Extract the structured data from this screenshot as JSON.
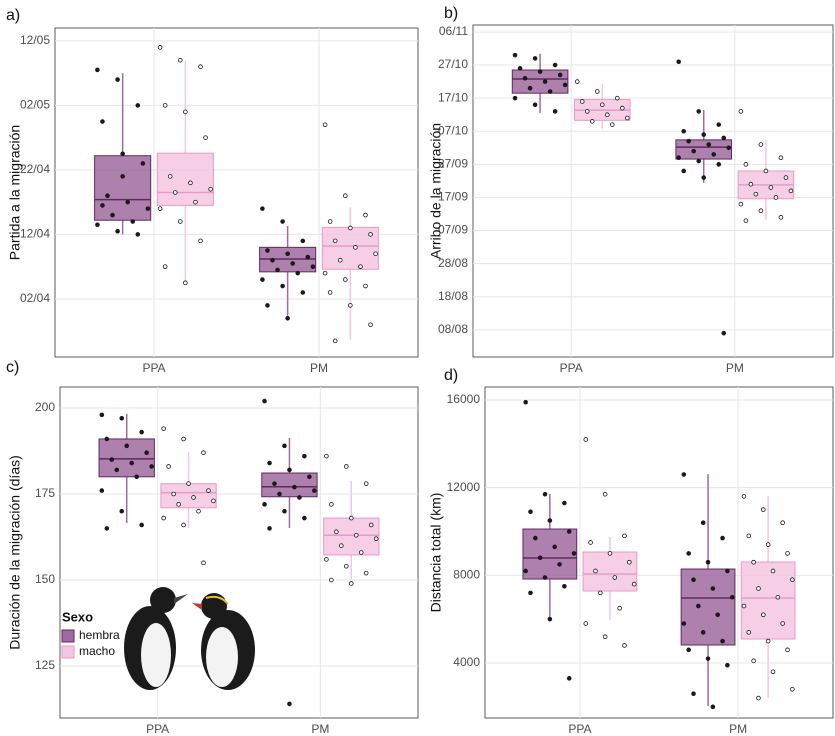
{
  "chart_data": [
    {
      "type": "box",
      "panel_label": "a)",
      "y_label": "Partida a la migración",
      "categories": [
        "PPA",
        "PM"
      ],
      "ylim": [
        83,
        134
      ],
      "yticks": [
        {
          "value": 92,
          "label": "02/04"
        },
        {
          "value": 102,
          "label": "12/04"
        },
        {
          "value": 112,
          "label": "22/04"
        },
        {
          "value": 122,
          "label": "02/05"
        },
        {
          "value": 132,
          "label": "12/05"
        }
      ],
      "grid": true,
      "series": [
        {
          "color": "#a06aa0",
          "stroke": "#5e2a5e",
          "hollow_points": false,
          "boxes": [
            {
              "low": 102,
              "q1": 104.2,
              "median": 107.4,
              "q3": 114.2,
              "high": 127,
              "points": [
                127.5,
                126,
                122,
                119.5,
                114.5,
                113,
                108,
                107,
                106,
                105,
                104,
                103.5,
                102.5,
                102,
                106.5,
                111
              ]
            },
            {
              "low": 89.4,
              "q1": 96.2,
              "median": 98.2,
              "q3": 100,
              "high": 103.3,
              "points": [
                106,
                104,
                101,
                99.5,
                99,
                98.5,
                98,
                97.5,
                97,
                96.5,
                96,
                95,
                94,
                93,
                91,
                89
              ]
            }
          ]
        },
        {
          "color": "#f4c6e2",
          "stroke": "#e79bc9",
          "hollow_points": true,
          "boxes": [
            {
              "low": 94.8,
              "q1": 106.5,
              "median": 108.5,
              "q3": 114.6,
              "high": 128.9,
              "points": [
                131,
                129,
                128,
                122,
                121,
                117,
                111,
                110,
                109,
                108.5,
                107,
                106,
                104,
                101,
                97,
                94.5
              ]
            },
            {
              "low": 85.7,
              "q1": 96.6,
              "median": 100.2,
              "q3": 103.1,
              "high": 106.2,
              "points": [
                119,
                108,
                105,
                104,
                103,
                102,
                101,
                100,
                99,
                98,
                97,
                96,
                95,
                94,
                93,
                91,
                88,
                85.5
              ]
            }
          ]
        }
      ]
    },
    {
      "type": "box",
      "panel_label": "b)",
      "y_label": "Arribo de la migración",
      "categories": [
        "PPA",
        "PM"
      ],
      "ylim": [
        211.8,
        312.1
      ],
      "yticks": [
        {
          "value": 220,
          "label": "08/08"
        },
        {
          "value": 230,
          "label": "18/08"
        },
        {
          "value": 240,
          "label": "28/08"
        },
        {
          "value": 250,
          "label": "07/09"
        },
        {
          "value": 260,
          "label": "17/09"
        },
        {
          "value": 270,
          "label": "27/09"
        },
        {
          "value": 280,
          "label": "07/10"
        },
        {
          "value": 290,
          "label": "17/10"
        },
        {
          "value": 300,
          "label": "27/10"
        },
        {
          "value": 310,
          "label": "06/11"
        }
      ],
      "grid": true,
      "series": [
        {
          "color": "#a06aa0",
          "stroke": "#5e2a5e",
          "hollow_points": false,
          "boxes": [
            {
              "low": 285.5,
              "q1": 291.5,
              "median": 295.8,
              "q3": 298.5,
              "high": 303.4,
              "points": [
                303,
                302,
                300,
                299,
                298,
                297,
                296,
                295,
                294,
                293,
                292,
                290,
                288,
                286
              ]
            },
            {
              "low": 264.4,
              "q1": 271.6,
              "median": 275.2,
              "q3": 277.4,
              "high": 286.4,
              "points": [
                301,
                286,
                282,
                280,
                279,
                278,
                277,
                276,
                275,
                274,
                273,
                272,
                271,
                270,
                268,
                266,
                219
              ]
            }
          ]
        },
        {
          "color": "#f4c6e2",
          "stroke": "#e79bc9",
          "hollow_points": true,
          "boxes": [
            {
              "low": 280.8,
              "q1": 283.3,
              "median": 286.4,
              "q3": 289.6,
              "high": 294.2,
              "points": [
                295,
                292,
                290,
                289,
                288,
                287,
                286,
                285,
                284,
                283,
                282
              ]
            },
            {
              "low": 253.3,
              "q1": 259.6,
              "median": 263.8,
              "q3": 268,
              "high": 277.4,
              "points": [
                286,
                276,
                272,
                270,
                268,
                266,
                264,
                263,
                262,
                261,
                260,
                258,
                256,
                254,
                253
              ]
            }
          ]
        }
      ]
    },
    {
      "type": "box",
      "panel_label": "c)",
      "y_label": "Duración de la migración (días)",
      "categories": [
        "PPA",
        "PM"
      ],
      "ylim": [
        109.9,
        206.1
      ],
      "yticks": [
        125,
        150,
        175,
        200
      ],
      "grid": true,
      "legend": "bottom-left",
      "legend_title": "Sexo",
      "series": [
        {
          "name": "hembra",
          "color": "#a06aa0",
          "stroke": "#5e2a5e",
          "hollow_points": false,
          "boxes": [
            {
              "low": 166.6,
              "q1": 180,
              "median": 185.2,
              "q3": 191,
              "high": 198.3,
              "points": [
                198,
                197,
                193,
                191,
                189,
                187,
                185,
                184,
                183,
                182,
                180,
                176,
                170,
                166,
                165
              ]
            },
            {
              "low": 165.1,
              "q1": 174.2,
              "median": 177.1,
              "q3": 181.1,
              "high": 191.3,
              "points": [
                202,
                189,
                186,
                184,
                182,
                180,
                178,
                177,
                176,
                175,
                174,
                172,
                170,
                168,
                165,
                114
              ]
            }
          ]
        },
        {
          "name": "macho",
          "color": "#f4c6e2",
          "stroke": "#e79bc9",
          "hollow_points": true,
          "boxes": [
            {
              "low": 165.1,
              "q1": 171,
              "median": 175.4,
              "q3": 178,
              "high": 187.2,
              "points": [
                194,
                191,
                187,
                183,
                178,
                176,
                175,
                174,
                173,
                172,
                170,
                168,
                166,
                155
              ]
            },
            {
              "low": 150.3,
              "q1": 157.3,
              "median": 163,
              "q3": 168,
              "high": 178.8,
              "points": [
                186,
                183,
                178,
                172,
                168,
                166,
                164,
                163,
                162,
                160,
                158,
                156,
                154,
                152,
                150,
                149
              ]
            }
          ]
        }
      ]
    },
    {
      "type": "box",
      "panel_label": "d)",
      "y_label": "Distancia total (km)",
      "categories": [
        "PPA",
        "PM"
      ],
      "ylim": [
        1491,
        16593
      ],
      "yticks": [
        4000,
        8000,
        12000,
        16000
      ],
      "grid": true,
      "series": [
        {
          "color": "#a06aa0",
          "stroke": "#5e2a5e",
          "hollow_points": false,
          "boxes": [
            {
              "low": 5960,
              "q1": 7832,
              "median": 8790,
              "q3": 10113,
              "high": 11710,
              "points": [
                15900,
                11700,
                11300,
                10900,
                10500,
                10000,
                9700,
                9300,
                9000,
                8800,
                8500,
                8200,
                7900,
                7500,
                7200,
                6000,
                3300
              ]
            },
            {
              "low": 2040,
              "q1": 4821,
              "median": 6965,
              "q3": 8288,
              "high": 12620,
              "points": [
                12600,
                10400,
                9700,
                9000,
                8600,
                8200,
                7800,
                7400,
                7000,
                6600,
                6200,
                5800,
                5400,
                5000,
                4600,
                4200,
                3900,
                2600,
                2000
              ]
            }
          ]
        },
        {
          "color": "#f4c6e2",
          "stroke": "#e79bc9",
          "hollow_points": true,
          "boxes": [
            {
              "low": 5960,
              "q1": 7285,
              "median": 8060,
              "q3": 9064,
              "high": 9750,
              "points": [
                14200,
                11700,
                9800,
                9500,
                9000,
                8600,
                8200,
                7900,
                7600,
                7200,
                6500,
                5800,
                5200,
                4800
              ]
            },
            {
              "low": 2400,
              "q1": 5095,
              "median": 6965,
              "q3": 8608,
              "high": 11620,
              "points": [
                11600,
                11000,
                10400,
                9800,
                9400,
                9000,
                8600,
                8200,
                7800,
                7400,
                7000,
                6600,
                6200,
                5800,
                5400,
                5000,
                4600,
                4100,
                3600,
                2800,
                2400
              ]
            }
          ]
        }
      ]
    }
  ]
}
